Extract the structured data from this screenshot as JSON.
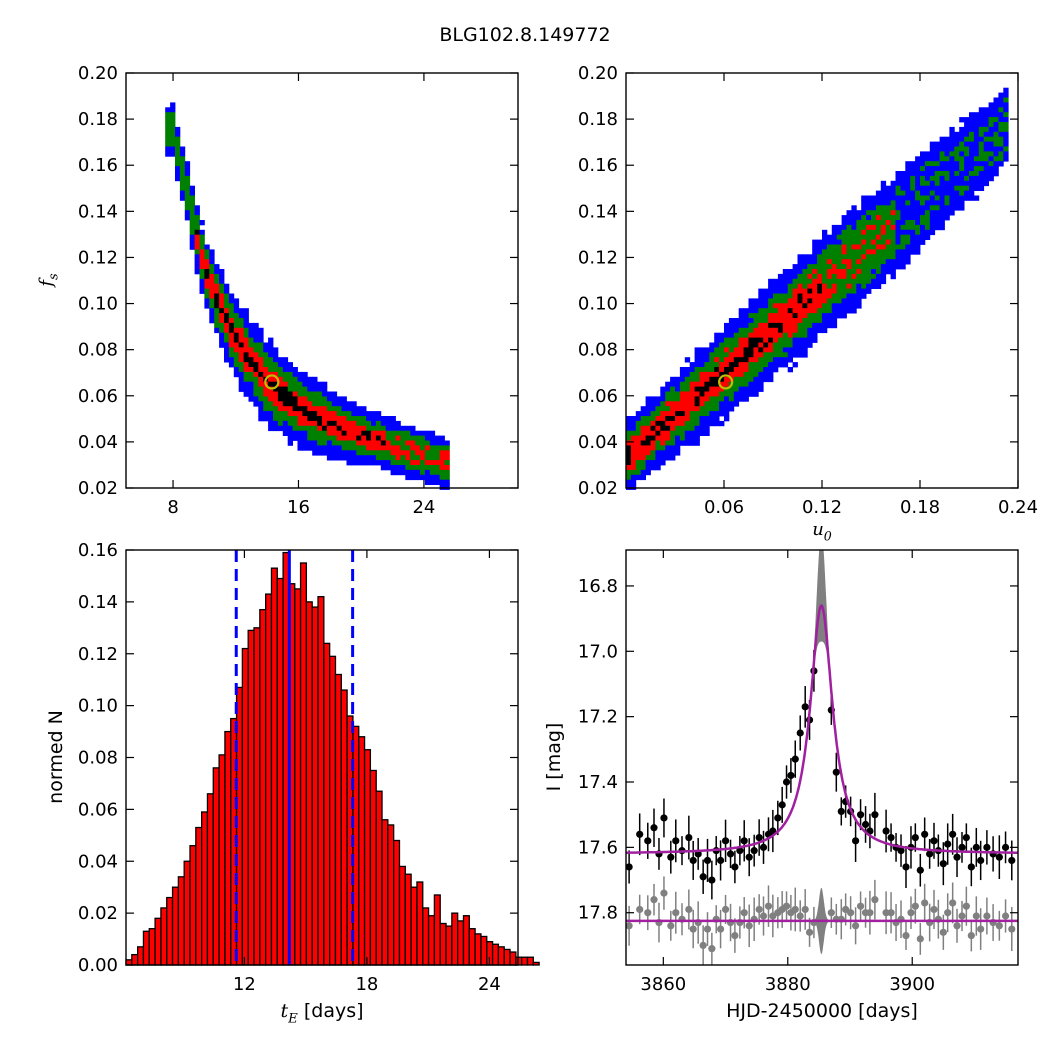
{
  "figure": {
    "title": "BLG102.8.149772"
  },
  "colors": {
    "sigma1": "#000000",
    "sigma2": "#ff0000",
    "sigma3": "#008000",
    "sigma4": "#0000ff",
    "marker": "#bfbf00",
    "hist_bar": "#ff0000",
    "hist_line": "#0000ff",
    "model_line": "#a020a0",
    "data_dark": "#000000",
    "data_grey": "#808080"
  },
  "chart_data": [
    {
      "id": "panel-tE-fs",
      "type": "heatmap",
      "xlabel": "",
      "ylabel": "f_s",
      "xlim": [
        5,
        30
      ],
      "ylim": [
        0.02,
        0.2
      ],
      "xticks": [
        8,
        16,
        24
      ],
      "yticks": [
        0.02,
        0.04,
        0.06,
        0.08,
        0.1,
        0.12,
        0.14,
        0.16,
        0.18,
        0.2
      ],
      "ytick_labels": [
        "0.02",
        "0.04",
        "0.06",
        "0.08",
        "0.10",
        "0.12",
        "0.14",
        "0.16",
        "0.18",
        "0.20"
      ],
      "levels": [
        "sigma1",
        "sigma2",
        "sigma3",
        "sigma4"
      ],
      "ridge_curve": [
        [
          8,
          0.175
        ],
        [
          9,
          0.145
        ],
        [
          10,
          0.115
        ],
        [
          11,
          0.098
        ],
        [
          12,
          0.085
        ],
        [
          13,
          0.075
        ],
        [
          14,
          0.066
        ],
        [
          15,
          0.06
        ],
        [
          16,
          0.055
        ],
        [
          17,
          0.051
        ],
        [
          18,
          0.048
        ],
        [
          20,
          0.043
        ],
        [
          22,
          0.038
        ],
        [
          24,
          0.034
        ],
        [
          25.5,
          0.031
        ]
      ],
      "best_fit": {
        "x": 14.3,
        "y": 0.066
      },
      "grid": false
    },
    {
      "id": "panel-u0-fs",
      "type": "heatmap",
      "xlabel": "u_0",
      "ylabel": "",
      "xlim": [
        0,
        0.24
      ],
      "ylim": [
        0.02,
        0.2
      ],
      "xticks": [
        0.06,
        0.12,
        0.18,
        0.24
      ],
      "xtick_labels": [
        "0.06",
        "0.12",
        "0.18",
        "0.24"
      ],
      "yticks": [
        0.02,
        0.04,
        0.06,
        0.08,
        0.1,
        0.12,
        0.14,
        0.16,
        0.18,
        0.2
      ],
      "ytick_labels": [
        "0.02",
        "0.04",
        "0.06",
        "0.08",
        "0.10",
        "0.12",
        "0.14",
        "0.16",
        "0.18",
        "0.20"
      ],
      "levels": [
        "sigma1",
        "sigma2",
        "sigma3",
        "sigma4"
      ],
      "ridge_line": {
        "x0": 0.0,
        "y0": 0.033,
        "x1": 0.23,
        "y1": 0.175
      },
      "best_fit": {
        "x": 0.061,
        "y": 0.066
      },
      "grid": false
    },
    {
      "id": "panel-tE-hist",
      "type": "bar",
      "xlabel": "t_E  [days]",
      "ylabel": "normed N",
      "xlim": [
        6.2,
        25.4
      ],
      "ylim": [
        0,
        0.16
      ],
      "xticks": [
        12,
        18,
        24
      ],
      "yticks": [
        0,
        0.02,
        0.04,
        0.06,
        0.08,
        0.1,
        0.12,
        0.14,
        0.16
      ],
      "ytick_labels": [
        "0.00",
        "0.02",
        "0.04",
        "0.06",
        "0.08",
        "0.10",
        "0.12",
        "0.14",
        "0.16"
      ],
      "bin_start": 6.2,
      "bin_width": 0.285,
      "values": [
        0.002,
        0.004,
        0.007,
        0.013,
        0.014,
        0.018,
        0.022,
        0.026,
        0.03,
        0.034,
        0.04,
        0.046,
        0.053,
        0.059,
        0.066,
        0.076,
        0.081,
        0.09,
        0.095,
        0.107,
        0.122,
        0.129,
        0.13,
        0.137,
        0.143,
        0.153,
        0.149,
        0.159,
        0.147,
        0.145,
        0.155,
        0.14,
        0.138,
        0.142,
        0.124,
        0.119,
        0.112,
        0.106,
        0.096,
        0.092,
        0.088,
        0.083,
        0.075,
        0.067,
        0.056,
        0.054,
        0.048,
        0.038,
        0.035,
        0.03,
        0.032,
        0.022,
        0.019,
        0.027,
        0.016,
        0.015,
        0.02,
        0.017,
        0.019,
        0.014,
        0.012,
        0.011,
        0.009,
        0.008,
        0.007,
        0.006,
        0.005,
        0.003,
        0.003,
        0.003,
        0.001
      ],
      "median": 14.2,
      "lower": 11.6,
      "upper": 17.3,
      "grid": false
    },
    {
      "id": "panel-lightcurve",
      "type": "line",
      "xlabel": "HJD-2450000 [days]",
      "ylabel": "I [mag]",
      "xlim": [
        3854,
        3917
      ],
      "ylim": [
        17.96,
        16.69
      ],
      "xticks": [
        3860,
        3880,
        3900
      ],
      "yticks": [
        16.8,
        17.0,
        17.2,
        17.4,
        17.6,
        17.8
      ],
      "ytick_labels": [
        "16.8",
        "17.0",
        "17.2",
        "17.4",
        "17.6",
        "17.8"
      ],
      "y_inverted": true,
      "model": {
        "t0": 3885.4,
        "baseline": 17.62,
        "peak": 16.86,
        "width": 2.2
      },
      "residual_baseline": 17.825,
      "series": [
        {
          "role": "data",
          "color": "data_dark",
          "x": [
            3854.5,
            3856.2,
            3857.5,
            3858.5,
            3859.3,
            3860.1,
            3861.2,
            3862.0,
            3863.0,
            3864.1,
            3864.8,
            3865.6,
            3866.4,
            3867.1,
            3867.8,
            3868.5,
            3869.2,
            3870.0,
            3870.8,
            3871.5,
            3872.3,
            3873.0,
            3873.8,
            3874.6,
            3875.4,
            3876.1,
            3876.9,
            3877.6,
            3878.4,
            3879.1,
            3879.8,
            3880.5,
            3881.2,
            3882.0,
            3882.8,
            3883.5,
            3884.2,
            3887.0,
            3887.8,
            3888.6,
            3889.3,
            3890.1,
            3890.9,
            3891.7,
            3892.5,
            3893.2,
            3894.0,
            3895.8,
            3896.6,
            3897.4,
            3898.2,
            3899.0,
            3899.8,
            3900.5,
            3901.3,
            3902.0,
            3902.8,
            3903.5,
            3904.2,
            3905.0,
            3905.7,
            3906.5,
            3907.2,
            3908.0,
            3908.7,
            3909.5,
            3910.3,
            3911.0,
            3912.0,
            3913.0,
            3914.0,
            3915.0,
            3916.0
          ],
          "y": [
            17.66,
            17.56,
            17.58,
            17.54,
            17.62,
            17.51,
            17.63,
            17.58,
            17.61,
            17.57,
            17.64,
            17.62,
            17.69,
            17.64,
            17.7,
            17.61,
            17.64,
            17.58,
            17.62,
            17.66,
            17.61,
            17.58,
            17.63,
            17.61,
            17.57,
            17.6,
            17.56,
            17.55,
            17.51,
            17.47,
            17.4,
            17.38,
            17.33,
            17.25,
            17.17,
            17.21,
            17.06,
            17.18,
            17.37,
            17.49,
            17.46,
            17.49,
            17.58,
            17.5,
            17.53,
            17.55,
            17.5,
            17.55,
            17.57,
            17.6,
            17.61,
            17.66,
            17.6,
            17.57,
            17.67,
            17.56,
            17.62,
            17.58,
            17.61,
            17.65,
            17.59,
            17.56,
            17.63,
            17.6,
            17.57,
            17.66,
            17.6,
            17.64,
            17.6,
            17.62,
            17.63,
            17.6,
            17.64
          ]
        },
        {
          "role": "residual",
          "color": "data_grey",
          "x": [
            3854.5,
            3856.2,
            3857.5,
            3858.5,
            3859.3,
            3860.1,
            3861.2,
            3862.0,
            3863.0,
            3864.1,
            3864.8,
            3865.6,
            3866.4,
            3867.1,
            3867.8,
            3868.5,
            3869.2,
            3870.0,
            3870.8,
            3871.5,
            3872.3,
            3873.0,
            3873.8,
            3874.6,
            3875.4,
            3876.1,
            3876.9,
            3877.6,
            3878.4,
            3879.1,
            3879.8,
            3880.5,
            3881.2,
            3882.0,
            3882.8,
            3883.5,
            3884.2,
            3887.0,
            3887.8,
            3888.6,
            3889.3,
            3890.1,
            3890.9,
            3891.7,
            3892.5,
            3893.2,
            3894.0,
            3895.8,
            3896.6,
            3897.4,
            3898.2,
            3899.0,
            3899.8,
            3900.5,
            3901.3,
            3902.0,
            3902.8,
            3903.5,
            3904.2,
            3905.0,
            3905.7,
            3906.5,
            3907.2,
            3908.0,
            3908.7,
            3909.5,
            3910.3,
            3911.0,
            3912.0,
            3913.0,
            3914.0,
            3915.0,
            3916.0
          ],
          "y": [
            17.84,
            17.79,
            17.8,
            17.76,
            17.83,
            17.74,
            17.84,
            17.8,
            17.82,
            17.79,
            17.85,
            17.83,
            17.9,
            17.85,
            17.91,
            17.82,
            17.85,
            17.79,
            17.83,
            17.87,
            17.83,
            17.8,
            17.84,
            17.82,
            17.79,
            17.81,
            17.78,
            17.81,
            17.8,
            17.79,
            17.78,
            17.8,
            17.79,
            17.81,
            17.79,
            17.86,
            17.83,
            17.8,
            17.82,
            17.82,
            17.79,
            17.8,
            17.84,
            17.78,
            17.8,
            17.8,
            17.76,
            17.8,
            17.8,
            17.83,
            17.82,
            17.87,
            17.8,
            17.78,
            17.88,
            17.77,
            17.83,
            17.79,
            17.82,
            17.86,
            17.8,
            17.77,
            17.84,
            17.81,
            17.78,
            17.87,
            17.81,
            17.85,
            17.81,
            17.83,
            17.84,
            17.81,
            17.85
          ]
        }
      ],
      "grid": false
    }
  ]
}
